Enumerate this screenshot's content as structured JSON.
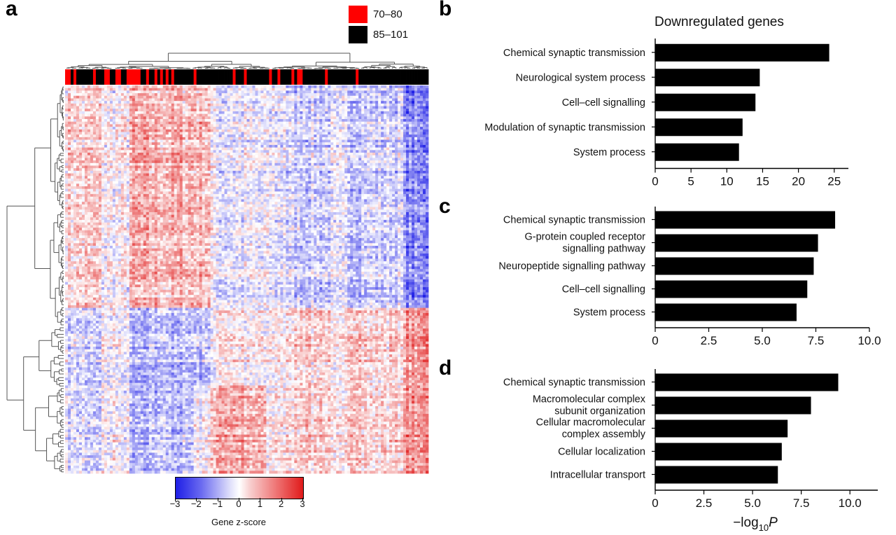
{
  "panels": {
    "a": {
      "letter": "a",
      "legend": [
        {
          "label": "70–80",
          "color": "#ff0000"
        },
        {
          "label": "85–101",
          "color": "#000000"
        }
      ],
      "colorbar": {
        "ticks": [
          "−3",
          "−2",
          "−1",
          "0",
          "1",
          "2",
          "3"
        ],
        "title": "Gene z-score",
        "colors": {
          "low": "#1e1ee6",
          "mid": "#ffffff",
          "high": "#e01a1a"
        }
      }
    },
    "b": {
      "letter": "b"
    },
    "c": {
      "letter": "c"
    },
    "d": {
      "letter": "d"
    }
  },
  "chart_data": [
    {
      "type": "heatmap",
      "title": "",
      "colorbar_label": "Gene z-score",
      "value_range": [
        -3,
        3
      ],
      "column_groups": [
        "70–80",
        "85–101"
      ]
    },
    {
      "type": "bar",
      "orientation": "horizontal",
      "title": "Downregulated genes",
      "categories": [
        "Chemical synaptic transmission",
        "Neurological system process",
        "Cell–cell signalling",
        "Modulation of synaptic transmission",
        "System process"
      ],
      "values": [
        24.3,
        14.6,
        14.0,
        12.2,
        11.7
      ],
      "xlim": [
        0,
        26
      ],
      "xticks": [
        "0",
        "5",
        "10",
        "15",
        "20",
        "25"
      ],
      "xlabel": ""
    },
    {
      "type": "bar",
      "orientation": "horizontal",
      "title": "",
      "categories": [
        "Chemical synaptic transmission",
        "G-protein coupled receptor signalling pathway",
        "Neuropeptide signalling pathway",
        "Cell–cell signalling",
        "System process"
      ],
      "values": [
        8.4,
        7.6,
        7.4,
        7.1,
        6.6
      ],
      "xlim": [
        0,
        10
      ],
      "xticks": [
        "0",
        "2.5",
        "5.0",
        "7.5",
        "10.0"
      ],
      "xlabel": ""
    },
    {
      "type": "bar",
      "orientation": "horizontal",
      "title": "",
      "categories": [
        "Chemical synaptic transmission",
        "Macromolecular complex subunit organization",
        "Cellular macromolecular complex assembly",
        "Cellular localization",
        "Intracellular transport"
      ],
      "values": [
        9.4,
        8.0,
        6.8,
        6.5,
        6.3
      ],
      "xlim": [
        0,
        11
      ],
      "xticks": [
        "0",
        "2.5",
        "5.0",
        "7.5",
        "10.0"
      ],
      "xlabel": "−log10P"
    }
  ]
}
